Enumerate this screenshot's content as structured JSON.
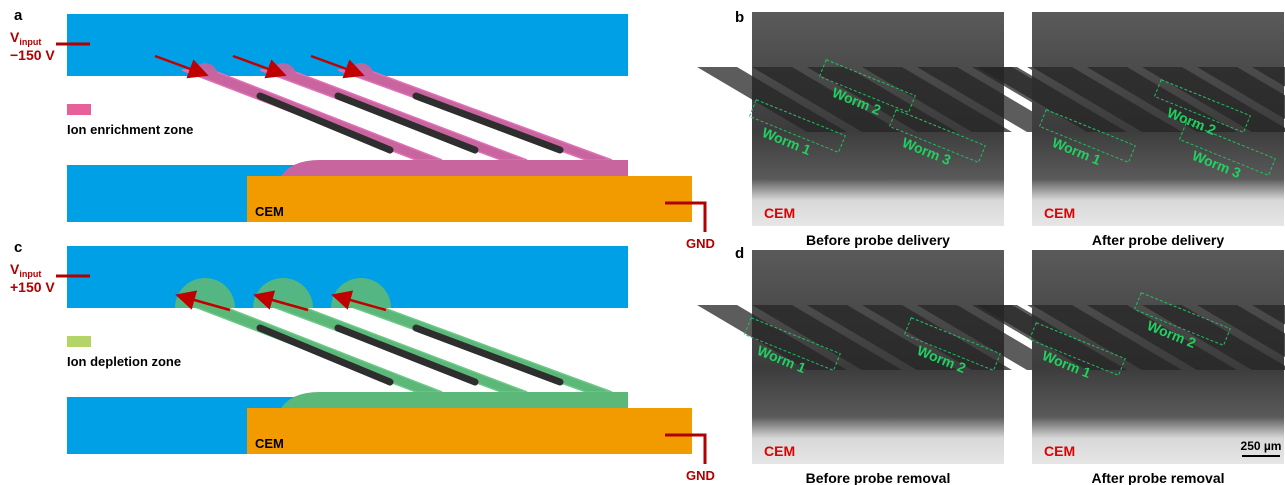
{
  "panels": [
    {
      "label": "a",
      "voltage": {
        "symbol": "V",
        "subscript": "input",
        "value": "−150 V"
      },
      "legend": "Ion enrichment zone",
      "electrode": "CEM",
      "ground": "GND"
    },
    {
      "label": "c",
      "voltage": {
        "symbol": "V",
        "subscript": "input",
        "value": "+150 V"
      },
      "legend": "Ion depletion zone",
      "electrode": "CEM",
      "ground": "GND"
    }
  ],
  "images": {
    "label_top": "b",
    "label_bottom": "d",
    "scale_bar": "250 µm",
    "items": [
      {
        "caption": "Before probe delivery",
        "electrode": "CEM",
        "worms": [
          "Worm 1",
          "Worm 2",
          "Worm 3"
        ]
      },
      {
        "caption": "After probe delivery",
        "electrode": "CEM",
        "worms": [
          "Worm 1",
          "Worm 2",
          "Worm 3"
        ]
      },
      {
        "caption": "Before probe removal",
        "electrode": "CEM",
        "worms": [
          "Worm 1",
          "Worm 2"
        ]
      },
      {
        "caption": "After probe removal",
        "electrode": "CEM",
        "worms": [
          "Worm 1",
          "Worm 2"
        ]
      }
    ]
  }
}
